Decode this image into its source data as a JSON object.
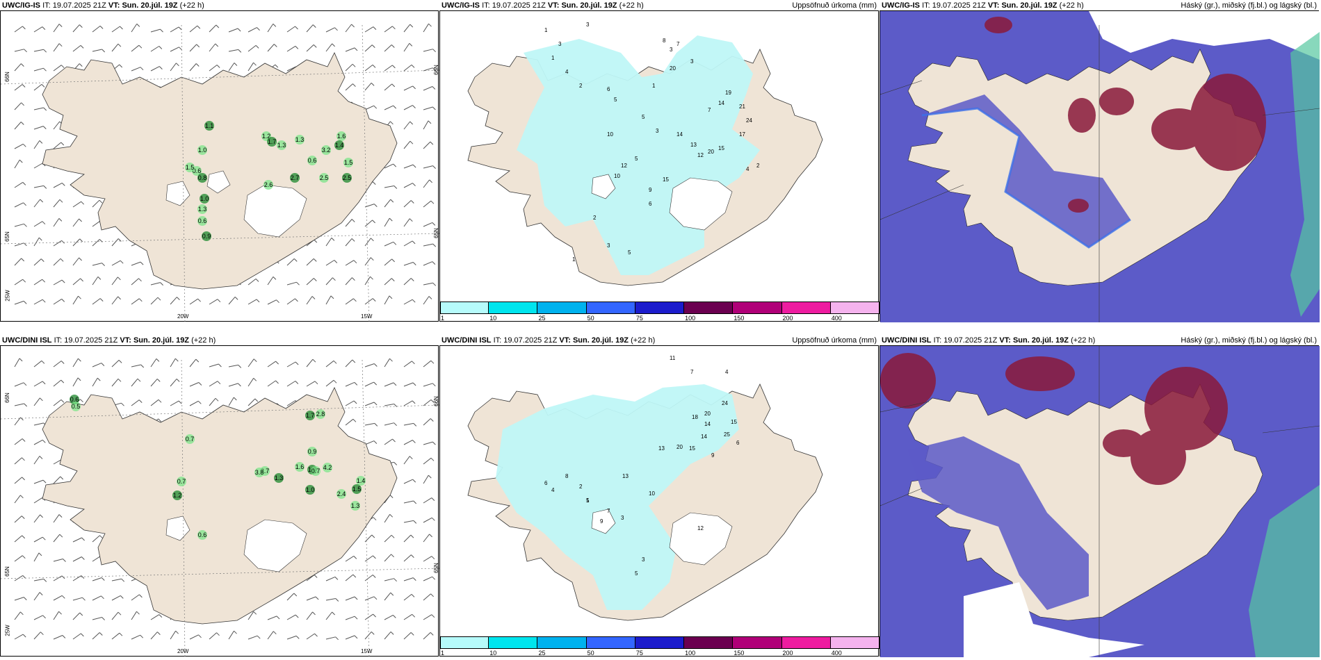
{
  "rows": [
    {
      "model": "UWC/IG-IS",
      "it_label": "IT:",
      "it_value": "19.07.2025 21Z",
      "vt_label": "VT:",
      "vt_value": "Sun. 20.júl. 19Z",
      "lead": "(+22 h)",
      "middle_title": "Uppsöfnuð úrkoma (mm)",
      "right_title": "Háský (gr.), miðský (fj.bl.) og lágský (bl.)",
      "lat_labels_left": [
        "66N",
        "65N",
        "25W"
      ],
      "lat_labels_right": [
        "66N",
        "65N"
      ],
      "lon_labels": [
        "20W",
        "15W"
      ],
      "thunder_values": [
        "1.1",
        "1.0",
        "0.6",
        "0.8",
        "1.5",
        "1.2",
        "1.7",
        "1.3",
        "1.6",
        "1.4",
        "3.2",
        "0.6",
        "2.7",
        "2.6",
        "2.5",
        "1.0",
        "1.3",
        "0.6",
        "0.9",
        "1.3",
        "1.5",
        "2.5"
      ],
      "precip_values": [
        "1",
        "3",
        "3",
        "1",
        "4",
        "8",
        "7",
        "3",
        "20",
        "3",
        "2",
        "1",
        "6",
        "5",
        "19",
        "14",
        "7",
        "10",
        "5",
        "3",
        "14",
        "20",
        "15",
        "12",
        "13",
        "17",
        "24",
        "21",
        "4",
        "2",
        "5",
        "12",
        "10",
        "15",
        "9",
        "6",
        "2",
        "1",
        "3",
        "5"
      ]
    },
    {
      "model": "UWC/DINI ISL",
      "it_label": "IT:",
      "it_value": "19.07.2025 21Z",
      "vt_label": "VT:",
      "vt_value": "Sun. 20.júl. 19Z",
      "lead": "(+22 h)",
      "middle_title": "Uppsöfnuð úrkoma (mm)",
      "right_title": "Háský (gr.), miðský (fj.bl.) og lágský (bl.)",
      "lat_labels_left": [
        "66N",
        "65N",
        "25W"
      ],
      "lat_labels_right": [
        "66N",
        "65N"
      ],
      "lon_labels": [
        "20W",
        "15W"
      ],
      "thunder_values": [
        "0.6",
        "0.5",
        "0.7",
        "1.7",
        "2.8",
        "0.7",
        "1.2",
        "3.7",
        "1.6",
        "1.3",
        "3.8",
        "0.9",
        "1.0",
        "0.7",
        "4.2",
        "1.0",
        "2.4",
        "1.4",
        "1.5",
        "1.3",
        "0.6"
      ],
      "precip_values": [
        "11",
        "7",
        "4",
        "24",
        "20",
        "18",
        "15",
        "14",
        "25",
        "13",
        "20",
        "15",
        "14",
        "9",
        "6",
        "13",
        "10",
        "5",
        "7",
        "3",
        "4",
        "2",
        "1",
        "6",
        "8",
        "9",
        "3",
        "5",
        "12"
      ]
    }
  ],
  "colorbar": {
    "ticks": [
      "1",
      "10",
      "25",
      "50",
      "75",
      "100",
      "150",
      "200",
      "400"
    ],
    "colors": [
      "#b6fbfb",
      "#00e5ee",
      "#00b2ee",
      "#3366ff",
      "#1c1ccc",
      "#6b0050",
      "#b00078",
      "#ee1ca0",
      "#f5b3ee"
    ]
  },
  "colors": {
    "land": "#efe4d6",
    "sea": "#ffffff",
    "light_precip": "#bff7f7",
    "low_cloud": "#5c5bc8",
    "mid_cloud": "#3c6fe8",
    "high_cloud": "#8a1a3a",
    "thunder_green": "#1e8a2e"
  }
}
